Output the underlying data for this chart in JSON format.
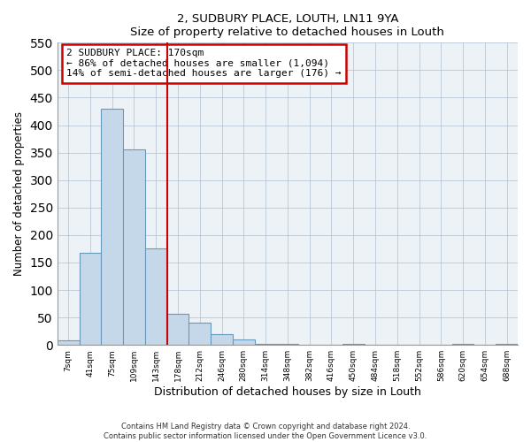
{
  "title": "2, SUDBURY PLACE, LOUTH, LN11 9YA",
  "subtitle": "Size of property relative to detached houses in Louth",
  "xlabel": "Distribution of detached houses by size in Louth",
  "ylabel": "Number of detached properties",
  "bar_labels": [
    "7sqm",
    "41sqm",
    "75sqm",
    "109sqm",
    "143sqm",
    "178sqm",
    "212sqm",
    "246sqm",
    "280sqm",
    "314sqm",
    "348sqm",
    "382sqm",
    "416sqm",
    "450sqm",
    "484sqm",
    "518sqm",
    "552sqm",
    "586sqm",
    "620sqm",
    "654sqm",
    "688sqm"
  ],
  "bar_values": [
    8,
    168,
    430,
    356,
    175,
    57,
    40,
    20,
    10,
    2,
    2,
    0,
    0,
    2,
    0,
    0,
    0,
    0,
    2,
    0,
    2
  ],
  "bar_color": "#c5d8ea",
  "bar_edge_color": "#6699bb",
  "vline_color": "#cc0000",
  "annotation_title": "2 SUDBURY PLACE: 170sqm",
  "annotation_line1": "← 86% of detached houses are smaller (1,094)",
  "annotation_line2": "14% of semi-detached houses are larger (176) →",
  "annotation_box_color": "#cc0000",
  "ylim": [
    0,
    550
  ],
  "yticks": [
    0,
    50,
    100,
    150,
    200,
    250,
    300,
    350,
    400,
    450,
    500,
    550
  ],
  "footer1": "Contains HM Land Registry data © Crown copyright and database right 2024.",
  "footer2": "Contains public sector information licensed under the Open Government Licence v3.0.",
  "bg_color": "#edf2f7",
  "grid_color": "#b0bfcc"
}
